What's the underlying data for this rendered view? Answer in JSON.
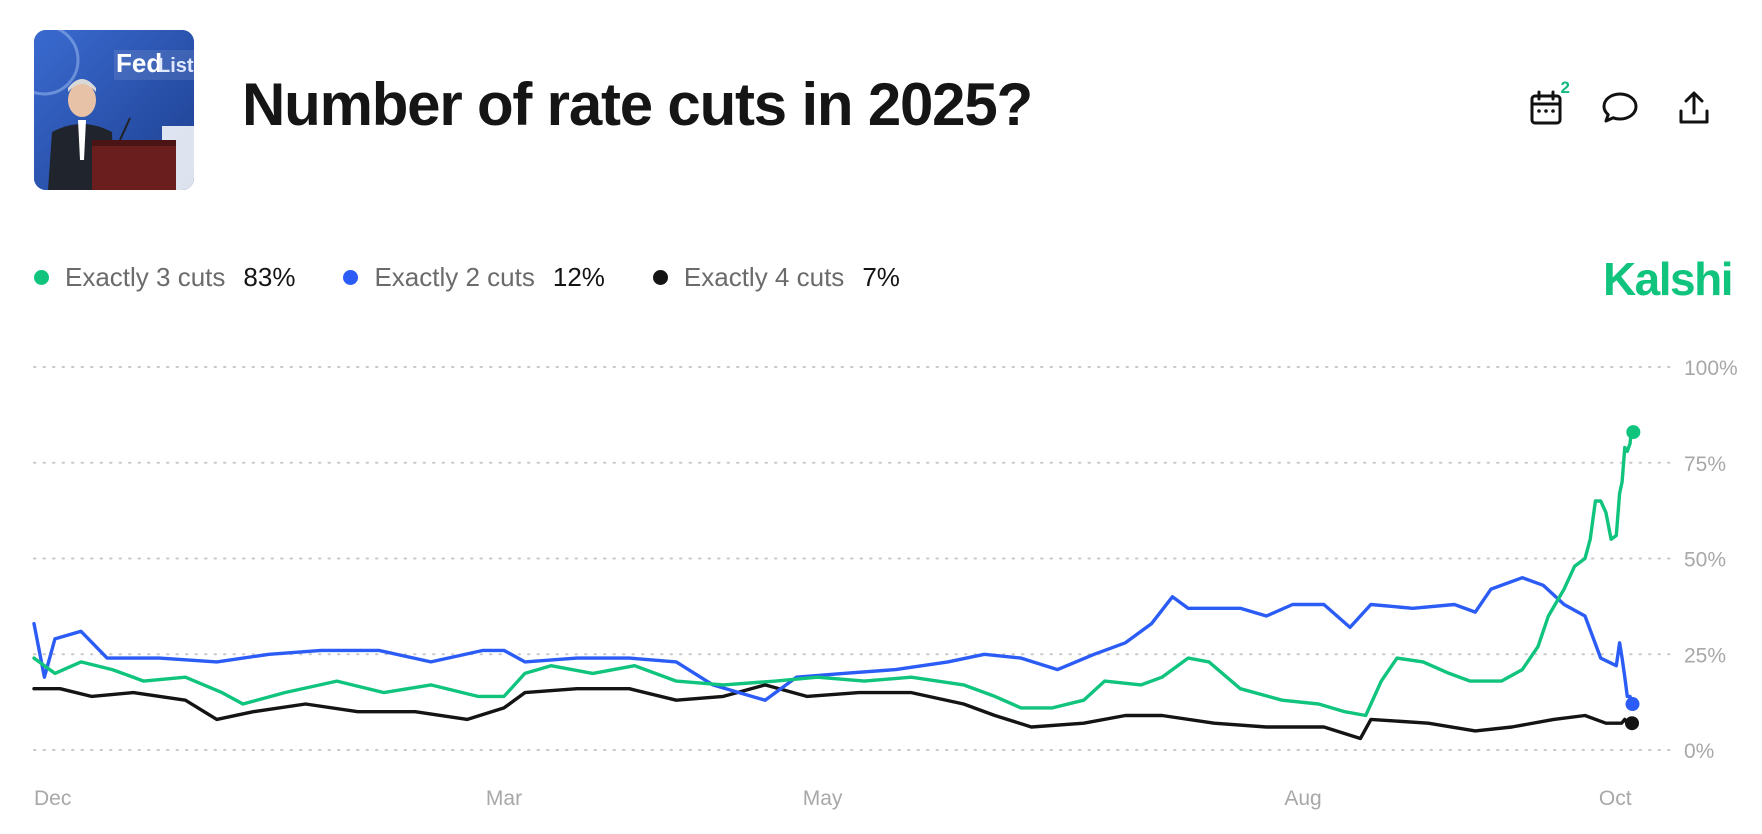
{
  "header": {
    "title": "Number of rate cuts in 2025?",
    "image_alt": "Fed Listens event photo",
    "notification_count": "2"
  },
  "icons": [
    "calendar-icon",
    "comment-icon",
    "share-icon"
  ],
  "brand": {
    "name": "Kalshi",
    "color": "#10c47e"
  },
  "legend": [
    {
      "name": "Exactly 3 cuts",
      "value": "83%",
      "color": "#10c47e"
    },
    {
      "name": "Exactly 2 cuts",
      "value": "12%",
      "color": "#2b5cf6"
    },
    {
      "name": "Exactly 4 cuts",
      "value": "7%",
      "color": "#141414"
    }
  ],
  "chart_data": {
    "type": "line",
    "title": "Number of rate cuts in 2025?",
    "xlabel": "",
    "ylabel": "",
    "ylim": [
      0,
      100
    ],
    "y_ticks": [
      "0%",
      "25%",
      "50%",
      "75%",
      "100%"
    ],
    "y_tick_values": [
      0,
      25,
      50,
      75,
      100
    ],
    "x_range": [
      "2024-12-01",
      "2025-10-03"
    ],
    "x_tick_labels": [
      "Dec",
      "Mar",
      "May",
      "Aug",
      "Oct"
    ],
    "x_tick_dates": [
      "2024-12-01",
      "2025-03-01",
      "2025-05-01",
      "2025-08-01",
      "2025-10-01"
    ],
    "grid": "horizontal-dotted",
    "series": [
      {
        "name": "Exactly 3 cuts",
        "color": "#10c47e",
        "points": [
          [
            "2024-12-01",
            24
          ],
          [
            "2024-12-05",
            20
          ],
          [
            "2024-12-10",
            23
          ],
          [
            "2024-12-16",
            21
          ],
          [
            "2024-12-22",
            18
          ],
          [
            "2024-12-30",
            19
          ],
          [
            "2025-01-06",
            15
          ],
          [
            "2025-01-10",
            12
          ],
          [
            "2025-01-18",
            15
          ],
          [
            "2025-01-28",
            18
          ],
          [
            "2025-02-06",
            15
          ],
          [
            "2025-02-15",
            17
          ],
          [
            "2025-02-24",
            14
          ],
          [
            "2025-03-01",
            14
          ],
          [
            "2025-03-05",
            20
          ],
          [
            "2025-03-10",
            22
          ],
          [
            "2025-03-18",
            20
          ],
          [
            "2025-03-26",
            22
          ],
          [
            "2025-04-03",
            18
          ],
          [
            "2025-04-12",
            17
          ],
          [
            "2025-04-22",
            18
          ],
          [
            "2025-04-30",
            19
          ],
          [
            "2025-05-09",
            18
          ],
          [
            "2025-05-18",
            19
          ],
          [
            "2025-05-28",
            17
          ],
          [
            "2025-06-03",
            14
          ],
          [
            "2025-06-08",
            11
          ],
          [
            "2025-06-14",
            11
          ],
          [
            "2025-06-20",
            13
          ],
          [
            "2025-06-24",
            18
          ],
          [
            "2025-07-01",
            17
          ],
          [
            "2025-07-05",
            19
          ],
          [
            "2025-07-10",
            24
          ],
          [
            "2025-07-14",
            23
          ],
          [
            "2025-07-20",
            16
          ],
          [
            "2025-07-28",
            13
          ],
          [
            "2025-08-04",
            12
          ],
          [
            "2025-08-09",
            10
          ],
          [
            "2025-08-13",
            9
          ],
          [
            "2025-08-16",
            18
          ],
          [
            "2025-08-19",
            24
          ],
          [
            "2025-08-24",
            23
          ],
          [
            "2025-08-29",
            20
          ],
          [
            "2025-09-02",
            18
          ],
          [
            "2025-09-08",
            18
          ],
          [
            "2025-09-12",
            21
          ],
          [
            "2025-09-15",
            27
          ],
          [
            "2025-09-17",
            35
          ],
          [
            "2025-09-20",
            42
          ],
          [
            "2025-09-22",
            48
          ],
          [
            "2025-09-24",
            50
          ],
          [
            "2025-09-25",
            55
          ],
          [
            "2025-09-26",
            65
          ],
          [
            "2025-09-27",
            65
          ],
          [
            "2025-09-28",
            62
          ],
          [
            "2025-09-29",
            55
          ],
          [
            "2025-09-30",
            56
          ],
          [
            "2025-10-01",
            67
          ],
          [
            "2025-10-01",
            70
          ],
          [
            "2025-10-02",
            79
          ],
          [
            "2025-10-02",
            78
          ],
          [
            "2025-10-03",
            80
          ],
          [
            "2025-10-03",
            84
          ],
          [
            "2025-10-03",
            83
          ]
        ]
      },
      {
        "name": "Exactly 2 cuts",
        "color": "#2b5cf6",
        "points": [
          [
            "2024-12-01",
            33
          ],
          [
            "2024-12-03",
            19
          ],
          [
            "2024-12-05",
            29
          ],
          [
            "2024-12-10",
            31
          ],
          [
            "2024-12-15",
            24
          ],
          [
            "2024-12-25",
            24
          ],
          [
            "2025-01-05",
            23
          ],
          [
            "2025-01-15",
            25
          ],
          [
            "2025-01-25",
            26
          ],
          [
            "2025-02-05",
            26
          ],
          [
            "2025-02-15",
            23
          ],
          [
            "2025-02-25",
            26
          ],
          [
            "2025-03-01",
            26
          ],
          [
            "2025-03-05",
            23
          ],
          [
            "2025-03-15",
            24
          ],
          [
            "2025-03-25",
            24
          ],
          [
            "2025-04-03",
            23
          ],
          [
            "2025-04-10",
            17
          ],
          [
            "2025-04-15",
            15
          ],
          [
            "2025-04-20",
            13
          ],
          [
            "2025-04-26",
            19
          ],
          [
            "2025-05-05",
            20
          ],
          [
            "2025-05-15",
            21
          ],
          [
            "2025-05-25",
            23
          ],
          [
            "2025-06-01",
            25
          ],
          [
            "2025-06-08",
            24
          ],
          [
            "2025-06-15",
            21
          ],
          [
            "2025-06-22",
            25
          ],
          [
            "2025-06-28",
            28
          ],
          [
            "2025-07-03",
            33
          ],
          [
            "2025-07-07",
            40
          ],
          [
            "2025-07-10",
            37
          ],
          [
            "2025-07-20",
            37
          ],
          [
            "2025-07-25",
            35
          ],
          [
            "2025-07-30",
            38
          ],
          [
            "2025-08-05",
            38
          ],
          [
            "2025-08-10",
            32
          ],
          [
            "2025-08-14",
            38
          ],
          [
            "2025-08-22",
            37
          ],
          [
            "2025-08-30",
            38
          ],
          [
            "2025-09-03",
            36
          ],
          [
            "2025-09-06",
            42
          ],
          [
            "2025-09-12",
            45
          ],
          [
            "2025-09-16",
            43
          ],
          [
            "2025-09-20",
            38
          ],
          [
            "2025-09-24",
            35
          ],
          [
            "2025-09-27",
            24
          ],
          [
            "2025-09-30",
            22
          ],
          [
            "2025-10-01",
            28
          ],
          [
            "2025-10-01",
            24
          ],
          [
            "2025-10-02",
            19
          ],
          [
            "2025-10-02",
            14
          ],
          [
            "2025-10-03",
            14
          ],
          [
            "2025-10-03",
            12
          ]
        ]
      },
      {
        "name": "Exactly 4 cuts",
        "color": "#141414",
        "points": [
          [
            "2024-12-01",
            16
          ],
          [
            "2024-12-06",
            16
          ],
          [
            "2024-12-12",
            14
          ],
          [
            "2024-12-20",
            15
          ],
          [
            "2024-12-30",
            13
          ],
          [
            "2025-01-05",
            8
          ],
          [
            "2025-01-12",
            10
          ],
          [
            "2025-01-22",
            12
          ],
          [
            "2025-02-01",
            10
          ],
          [
            "2025-02-12",
            10
          ],
          [
            "2025-02-22",
            8
          ],
          [
            "2025-03-01",
            11
          ],
          [
            "2025-03-05",
            15
          ],
          [
            "2025-03-15",
            16
          ],
          [
            "2025-03-25",
            16
          ],
          [
            "2025-04-03",
            13
          ],
          [
            "2025-04-12",
            14
          ],
          [
            "2025-04-20",
            17
          ],
          [
            "2025-04-28",
            14
          ],
          [
            "2025-05-08",
            15
          ],
          [
            "2025-05-18",
            15
          ],
          [
            "2025-05-28",
            12
          ],
          [
            "2025-06-03",
            9
          ],
          [
            "2025-06-10",
            6
          ],
          [
            "2025-06-20",
            7
          ],
          [
            "2025-06-28",
            9
          ],
          [
            "2025-07-05",
            9
          ],
          [
            "2025-07-15",
            7
          ],
          [
            "2025-07-25",
            6
          ],
          [
            "2025-08-05",
            6
          ],
          [
            "2025-08-12",
            3
          ],
          [
            "2025-08-14",
            8
          ],
          [
            "2025-08-25",
            7
          ],
          [
            "2025-09-03",
            5
          ],
          [
            "2025-09-10",
            6
          ],
          [
            "2025-09-18",
            8
          ],
          [
            "2025-09-24",
            9
          ],
          [
            "2025-09-28",
            7
          ],
          [
            "2025-10-01",
            7
          ],
          [
            "2025-10-02",
            8
          ],
          [
            "2025-10-02",
            7
          ],
          [
            "2025-10-03",
            7
          ]
        ]
      }
    ]
  }
}
